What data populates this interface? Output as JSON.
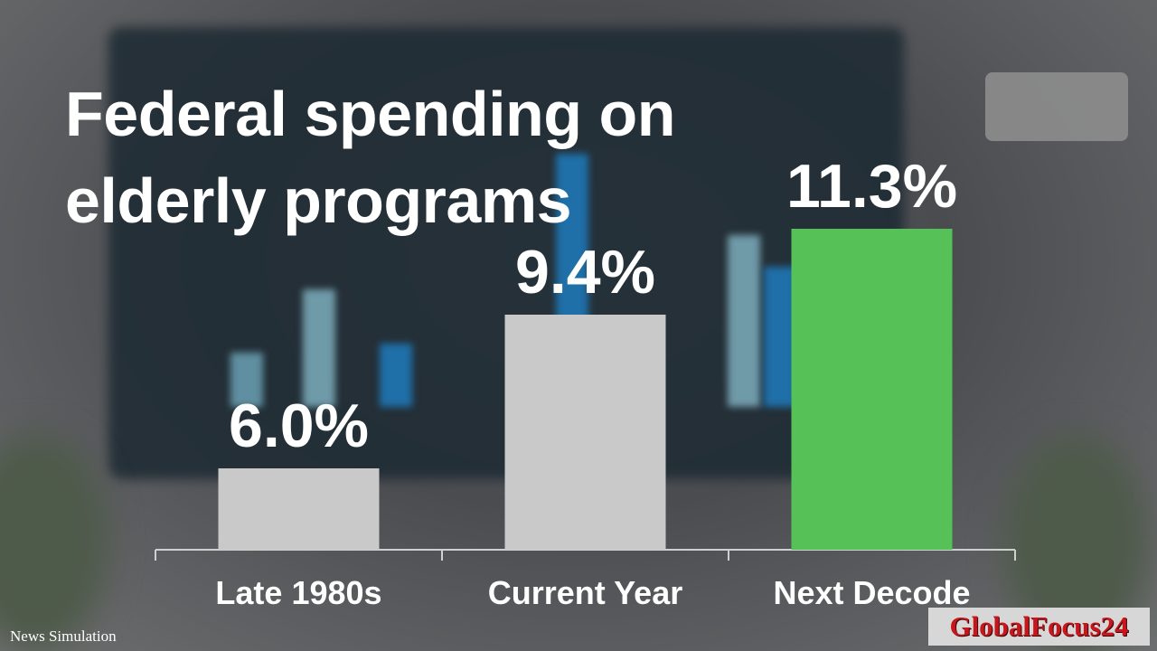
{
  "title_line1": "Federal spending on",
  "title_line2": "elderly programs",
  "chart_data": {
    "type": "bar",
    "title": "Federal spending on elderly programs",
    "categories": [
      "Late 1980s",
      "Current Year",
      "Next Decode"
    ],
    "values": [
      6.0,
      9.4,
      11.3
    ],
    "value_labels": [
      "6.0%",
      "9.4%",
      "11.3%"
    ],
    "colors": [
      "#c9c9c9",
      "#c9c9c9",
      "#55c157"
    ],
    "xlabel": "",
    "ylabel": "",
    "ylim": [
      4.2,
      11.3
    ],
    "grid": false
  },
  "footer": {
    "source": "News Simulation",
    "brand": "GlobalFocus24"
  }
}
